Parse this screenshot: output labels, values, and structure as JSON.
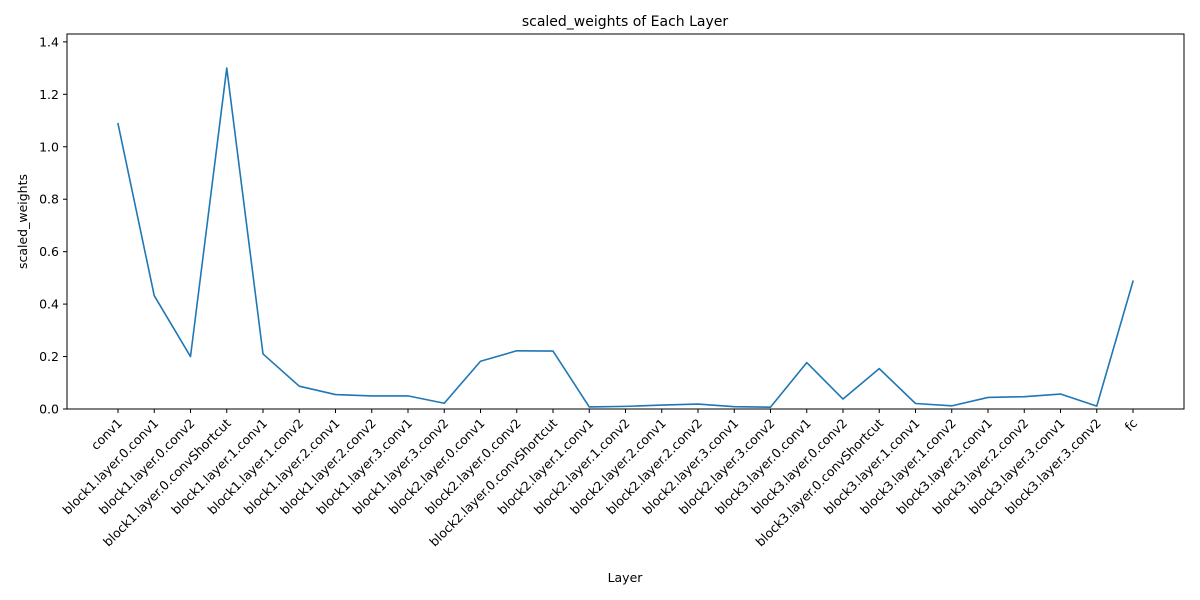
{
  "chart_data": {
    "type": "line",
    "title": "scaled_weights of Each Layer",
    "xlabel": "Layer",
    "ylabel": "scaled_weights",
    "categories": [
      "conv1",
      "block1.layer.0.conv1",
      "block1.layer.0.conv2",
      "block1.layer.0.convShortcut",
      "block1.layer.1.conv1",
      "block1.layer.1.conv2",
      "block1.layer.2.conv1",
      "block1.layer.2.conv2",
      "block1.layer.3.conv1",
      "block1.layer.3.conv2",
      "block2.layer.0.conv1",
      "block2.layer.0.conv2",
      "block2.layer.0.convShortcut",
      "block2.layer.1.conv1",
      "block2.layer.1.conv2",
      "block2.layer.2.conv1",
      "block2.layer.2.conv2",
      "block2.layer.3.conv1",
      "block2.layer.3.conv2",
      "block3.layer.0.conv1",
      "block3.layer.0.conv2",
      "block3.layer.0.convShortcut",
      "block3.layer.1.conv1",
      "block3.layer.1.conv2",
      "block3.layer.2.conv1",
      "block3.layer.2.conv2",
      "block3.layer.3.conv1",
      "block3.layer.3.conv2",
      "fc"
    ],
    "values": [
      1.088,
      0.432,
      0.2,
      1.3,
      0.21,
      0.087,
      0.055,
      0.05,
      0.05,
      0.022,
      0.182,
      0.222,
      0.221,
      0.008,
      0.01,
      0.015,
      0.019,
      0.009,
      0.007,
      0.177,
      0.038,
      0.154,
      0.021,
      0.012,
      0.044,
      0.047,
      0.057,
      0.011,
      0.487
    ],
    "ylim": [
      0,
      1.43
    ],
    "yticks": [
      0.0,
      0.2,
      0.4,
      0.6,
      0.8,
      1.0,
      1.2,
      1.4
    ],
    "ytick_labels": [
      "0.0",
      "0.2",
      "0.4",
      "0.6",
      "0.8",
      "1.0",
      "1.2",
      "1.4"
    ],
    "grid": false,
    "legend": "none",
    "line_color": "#1f77b4"
  }
}
